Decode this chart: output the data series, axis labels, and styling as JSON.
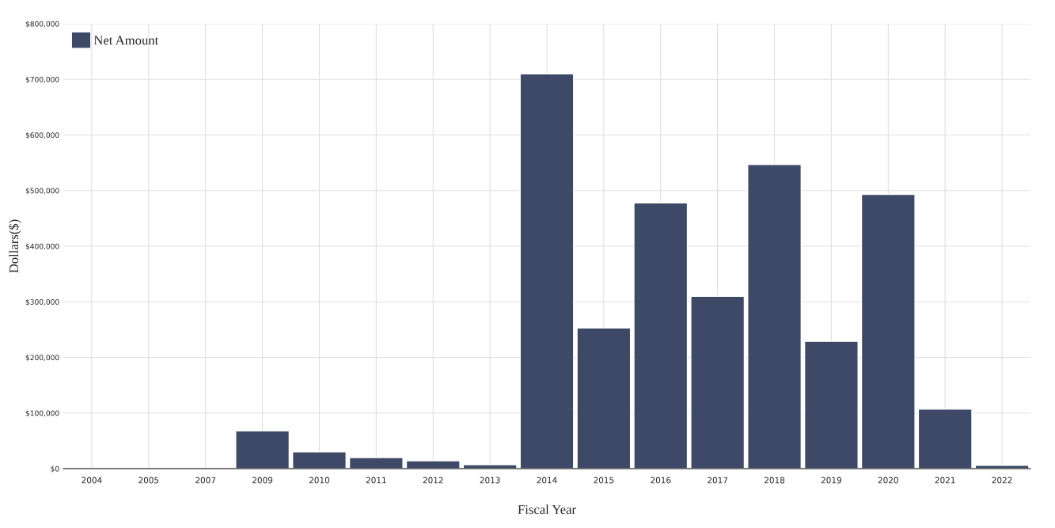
{
  "chart_data": {
    "type": "bar",
    "xlabel": "Fiscal Year",
    "ylabel": "Dollars($)",
    "categories": [
      "2004",
      "2005",
      "2007",
      "2009",
      "2010",
      "2011",
      "2012",
      "2013",
      "2014",
      "2015",
      "2016",
      "2017",
      "2018",
      "2019",
      "2020",
      "2021",
      "2022"
    ],
    "series": [
      {
        "name": "Net Amount",
        "color": "#3d4966",
        "values": [
          null,
          null,
          null,
          68000,
          30000,
          20000,
          14000,
          7000,
          710000,
          253000,
          478000,
          310000,
          547000,
          229000,
          493000,
          107000,
          6000
        ]
      }
    ],
    "ylim": [
      0,
      800000
    ],
    "yticks": [
      {
        "value": 0,
        "label": "$0"
      },
      {
        "value": 100000,
        "label": "$100,000"
      },
      {
        "value": 200000,
        "label": "$200,000"
      },
      {
        "value": 300000,
        "label": "$300,000"
      },
      {
        "value": 400000,
        "label": "$400,000"
      },
      {
        "value": 500000,
        "label": "$500,000"
      },
      {
        "value": 600000,
        "label": "$600,000"
      },
      {
        "value": 700000,
        "label": "$700,000"
      },
      {
        "value": 800000,
        "label": "$800,000"
      }
    ],
    "grid": true,
    "legend": "top left"
  }
}
